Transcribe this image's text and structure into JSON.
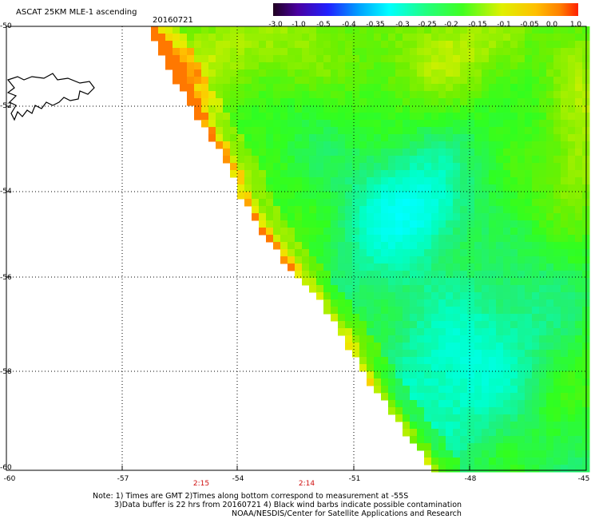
{
  "header": {
    "title": "ASCAT 25KM MLE-1 ascending",
    "date": "20160721"
  },
  "colorbar": {
    "labels": [
      "-3.0",
      "-1.0",
      "-0.5",
      "-0.4",
      "-0.35",
      "-0.3",
      "-0.25",
      "-0.2",
      "-0.15",
      "-0.1",
      "-0.05",
      "0.0",
      "1.0"
    ],
    "colors": [
      "#200020",
      "#4a00a0",
      "#2020ff",
      "#00a0ff",
      "#00e0ff",
      "#00ffd0",
      "#20ff80",
      "#40ff20",
      "#a0f000",
      "#e0f000",
      "#ffc000",
      "#ff8000",
      "#ff2000"
    ]
  },
  "map": {
    "lat_labels": [
      "-50",
      "-52",
      "-54",
      "-56",
      "-58",
      "-60"
    ],
    "lon_labels": [
      "-60",
      "-57",
      "-54",
      "-51",
      "-48",
      "-45"
    ],
    "time_labels": [
      "2:15",
      "2:14"
    ]
  },
  "notes": {
    "line1": "Note: 1) Times are GMT 2)Times along bottom correspond to measurement at -55S",
    "line2": "3)Data buffer is 22 hrs from 20160721 4) Black wind barbs indicate possible contamination",
    "line3": "NOAA/NESDIS/Center for Satellite Applications and Research"
  }
}
